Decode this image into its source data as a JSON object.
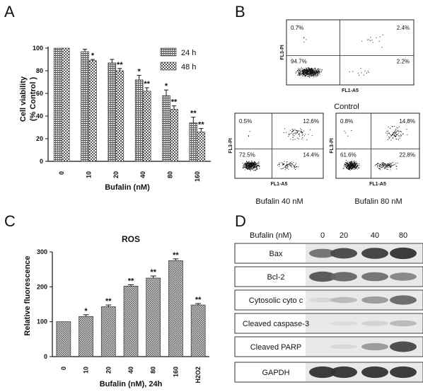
{
  "panels": {
    "A": {
      "label": "A"
    },
    "B": {
      "label": "B"
    },
    "C": {
      "label": "C"
    },
    "D": {
      "label": "D"
    }
  },
  "chart_data": [
    {
      "panel": "A",
      "type": "bar",
      "categories": [
        "0",
        "10",
        "20",
        "40",
        "80",
        "160"
      ],
      "series": [
        {
          "name": "24 h",
          "values": [
            100,
            97,
            87,
            72,
            58,
            34
          ],
          "errors": [
            0,
            2,
            3,
            4,
            5,
            5
          ],
          "significance": [
            "",
            "",
            "",
            "*",
            "*",
            "**"
          ]
        },
        {
          "name": "48 h",
          "values": [
            100,
            89,
            80,
            62,
            46,
            26
          ],
          "errors": [
            0,
            1,
            2,
            3,
            3,
            3
          ],
          "significance": [
            "",
            "*",
            "**",
            "**",
            "**",
            "**"
          ]
        }
      ],
      "xlabel": "Bufalin (nM)",
      "ylabel": [
        "Cell viability",
        "(% Control )"
      ],
      "ylim": [
        0,
        100
      ],
      "yticks": [
        "0",
        "20",
        "40",
        "60",
        "80",
        "100"
      ],
      "legend_placement": "top-right",
      "grid": false
    },
    {
      "panel": "C",
      "type": "bar",
      "title": "ROS",
      "categories": [
        "0",
        "10",
        "20",
        "40",
        "80",
        "160",
        "H2O2"
      ],
      "values": [
        100,
        115,
        143,
        202,
        225,
        275,
        148
      ],
      "errors": [
        0,
        5,
        5,
        4,
        6,
        5,
        4
      ],
      "significance": [
        "",
        "*",
        "**",
        "**",
        "**",
        "**",
        "**"
      ],
      "xlabel": "Bufalin (nM), 24h",
      "ylabel": "Relative fluorescence",
      "ylim": [
        0,
        300
      ],
      "yticks": [
        "0",
        "100",
        "200",
        "300"
      ],
      "grid": false
    },
    {
      "panel": "B",
      "type": "scatter",
      "plots": [
        {
          "caption": "Control",
          "quadrants": [
            "0.7%",
            "2.4%",
            "94.7%",
            "2.2%"
          ]
        },
        {
          "caption": "Bufalin 40 nM",
          "quadrants": [
            "0.5%",
            "12.6%",
            "72.5%",
            "14.4%"
          ]
        },
        {
          "caption": "Bufalin 80 nM",
          "quadrants": [
            "0.8%",
            "14.8%",
            "61.6%",
            "22.8%"
          ]
        }
      ],
      "xlabel": "FL1-A5",
      "ylabel": "FL3-PI"
    }
  ],
  "western": {
    "header_label": "Bufalin (nM)",
    "lanes": [
      "0",
      "20",
      "40",
      "80"
    ],
    "rows": [
      {
        "label": "Bax",
        "intensity": [
          0.55,
          0.75,
          0.8,
          0.85
        ]
      },
      {
        "label": "Bcl-2",
        "intensity": [
          0.7,
          0.6,
          0.55,
          0.45
        ]
      },
      {
        "label": "Cytosolic cyto c",
        "intensity": [
          0.05,
          0.2,
          0.35,
          0.6
        ]
      },
      {
        "label": "Cleaved caspase-3",
        "intensity": [
          0.0,
          0.03,
          0.08,
          0.2
        ]
      },
      {
        "label": "Cleaved PARP",
        "intensity": [
          0.0,
          0.05,
          0.35,
          0.75
        ]
      },
      {
        "label": "GAPDH",
        "intensity": [
          0.85,
          0.85,
          0.85,
          0.85
        ]
      }
    ]
  }
}
